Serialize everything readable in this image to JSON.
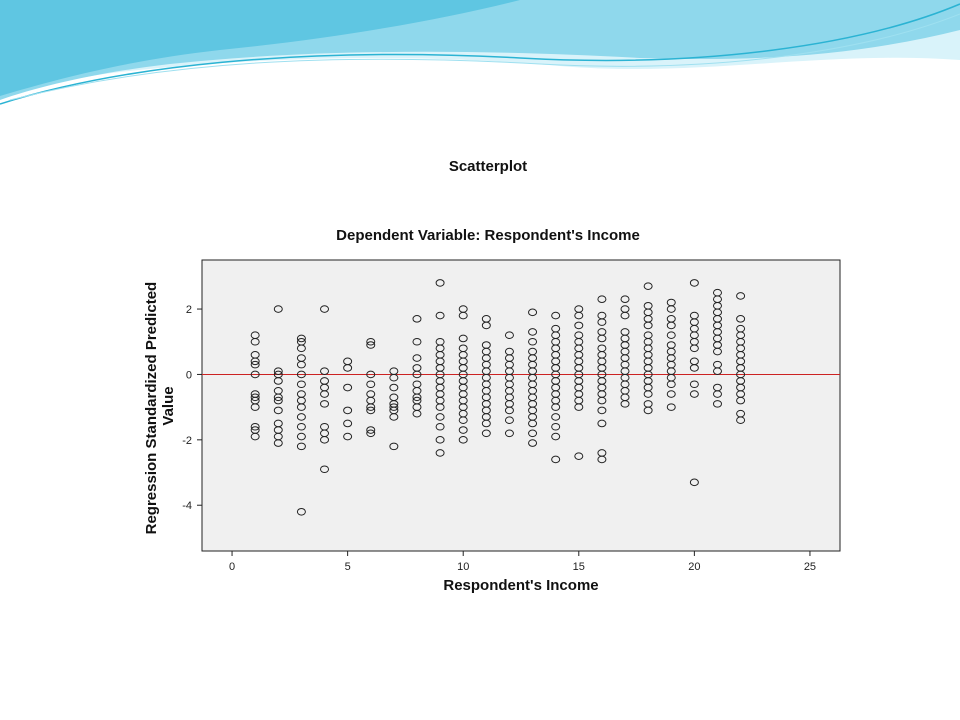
{
  "theme": {
    "wave_light": "#d9f3fa",
    "wave_mid": "#8fd8ec",
    "wave_dark": "#2bb3d3",
    "plot_background": "#f0f0f0",
    "reference_line": "#cc2222",
    "marker_stroke": "#222222"
  },
  "chart_data": {
    "type": "scatter",
    "title": "Scatterplot",
    "subtitle": "Dependent Variable: Respondent's Income",
    "xlabel": "Respondent's Income",
    "ylabel": "Regression Standardized Predicted Value",
    "xlim": [
      -1.3,
      26.3
    ],
    "ylim": [
      -5.4,
      3.5
    ],
    "x_ticks": [
      0,
      5,
      10,
      15,
      20,
      25
    ],
    "y_ticks": [
      2,
      0,
      -2,
      -4
    ],
    "grid": false,
    "reference_line_y": 0,
    "marker": "open-circle",
    "points": [
      {
        "x": 1,
        "y": 1.2
      },
      {
        "x": 1,
        "y": 1.0
      },
      {
        "x": 1,
        "y": 0.6
      },
      {
        "x": 1,
        "y": 0.4
      },
      {
        "x": 1,
        "y": 0.3
      },
      {
        "x": 1,
        "y": 0.0
      },
      {
        "x": 1,
        "y": -0.6
      },
      {
        "x": 1,
        "y": -0.7
      },
      {
        "x": 1,
        "y": -0.8
      },
      {
        "x": 1,
        "y": -1.0
      },
      {
        "x": 1,
        "y": -1.6
      },
      {
        "x": 1,
        "y": -1.7
      },
      {
        "x": 1,
        "y": -1.9
      },
      {
        "x": 2,
        "y": 2.0
      },
      {
        "x": 2,
        "y": 0.1
      },
      {
        "x": 2,
        "y": 0.0
      },
      {
        "x": 2,
        "y": -0.2
      },
      {
        "x": 2,
        "y": -0.5
      },
      {
        "x": 2,
        "y": -0.7
      },
      {
        "x": 2,
        "y": -0.8
      },
      {
        "x": 2,
        "y": -1.1
      },
      {
        "x": 2,
        "y": -1.5
      },
      {
        "x": 2,
        "y": -1.7
      },
      {
        "x": 2,
        "y": -1.9
      },
      {
        "x": 2,
        "y": -2.1
      },
      {
        "x": 3,
        "y": 1.1
      },
      {
        "x": 3,
        "y": 1.0
      },
      {
        "x": 3,
        "y": 0.8
      },
      {
        "x": 3,
        "y": 0.5
      },
      {
        "x": 3,
        "y": 0.3
      },
      {
        "x": 3,
        "y": 0.0
      },
      {
        "x": 3,
        "y": -0.3
      },
      {
        "x": 3,
        "y": -0.6
      },
      {
        "x": 3,
        "y": -0.8
      },
      {
        "x": 3,
        "y": -1.0
      },
      {
        "x": 3,
        "y": -1.3
      },
      {
        "x": 3,
        "y": -1.6
      },
      {
        "x": 3,
        "y": -1.9
      },
      {
        "x": 3,
        "y": -2.2
      },
      {
        "x": 3,
        "y": -4.2
      },
      {
        "x": 4,
        "y": 2.0
      },
      {
        "x": 4,
        "y": 0.1
      },
      {
        "x": 4,
        "y": -0.2
      },
      {
        "x": 4,
        "y": -0.4
      },
      {
        "x": 4,
        "y": -0.6
      },
      {
        "x": 4,
        "y": -0.9
      },
      {
        "x": 4,
        "y": -1.6
      },
      {
        "x": 4,
        "y": -1.8
      },
      {
        "x": 4,
        "y": -2.0
      },
      {
        "x": 4,
        "y": -2.9
      },
      {
        "x": 5,
        "y": 0.4
      },
      {
        "x": 5,
        "y": 0.2
      },
      {
        "x": 5,
        "y": -0.4
      },
      {
        "x": 5,
        "y": -1.1
      },
      {
        "x": 5,
        "y": -1.5
      },
      {
        "x": 5,
        "y": -1.9
      },
      {
        "x": 6,
        "y": 1.0
      },
      {
        "x": 6,
        "y": 0.9
      },
      {
        "x": 6,
        "y": 0.0
      },
      {
        "x": 6,
        "y": -0.3
      },
      {
        "x": 6,
        "y": -0.6
      },
      {
        "x": 6,
        "y": -0.8
      },
      {
        "x": 6,
        "y": -1.0
      },
      {
        "x": 6,
        "y": -1.1
      },
      {
        "x": 6,
        "y": -1.7
      },
      {
        "x": 6,
        "y": -1.8
      },
      {
        "x": 7,
        "y": 0.1
      },
      {
        "x": 7,
        "y": -0.1
      },
      {
        "x": 7,
        "y": -0.4
      },
      {
        "x": 7,
        "y": -0.7
      },
      {
        "x": 7,
        "y": -0.9
      },
      {
        "x": 7,
        "y": -1.0
      },
      {
        "x": 7,
        "y": -1.1
      },
      {
        "x": 7,
        "y": -1.3
      },
      {
        "x": 7,
        "y": -2.2
      },
      {
        "x": 8,
        "y": 1.7
      },
      {
        "x": 8,
        "y": 1.0
      },
      {
        "x": 8,
        "y": 0.5
      },
      {
        "x": 8,
        "y": 0.2
      },
      {
        "x": 8,
        "y": 0.0
      },
      {
        "x": 8,
        "y": -0.3
      },
      {
        "x": 8,
        "y": -0.5
      },
      {
        "x": 8,
        "y": -0.7
      },
      {
        "x": 8,
        "y": -0.8
      },
      {
        "x": 8,
        "y": -1.0
      },
      {
        "x": 8,
        "y": -1.2
      },
      {
        "x": 9,
        "y": 2.8
      },
      {
        "x": 9,
        "y": 1.8
      },
      {
        "x": 9,
        "y": 1.0
      },
      {
        "x": 9,
        "y": 0.8
      },
      {
        "x": 9,
        "y": 0.6
      },
      {
        "x": 9,
        "y": 0.4
      },
      {
        "x": 9,
        "y": 0.2
      },
      {
        "x": 9,
        "y": 0.0
      },
      {
        "x": 9,
        "y": -0.2
      },
      {
        "x": 9,
        "y": -0.4
      },
      {
        "x": 9,
        "y": -0.6
      },
      {
        "x": 9,
        "y": -0.8
      },
      {
        "x": 9,
        "y": -1.0
      },
      {
        "x": 9,
        "y": -1.3
      },
      {
        "x": 9,
        "y": -1.6
      },
      {
        "x": 9,
        "y": -2.0
      },
      {
        "x": 9,
        "y": -2.4
      },
      {
        "x": 10,
        "y": 2.0
      },
      {
        "x": 10,
        "y": 1.8
      },
      {
        "x": 10,
        "y": 1.1
      },
      {
        "x": 10,
        "y": 0.8
      },
      {
        "x": 10,
        "y": 0.6
      },
      {
        "x": 10,
        "y": 0.4
      },
      {
        "x": 10,
        "y": 0.2
      },
      {
        "x": 10,
        "y": 0.0
      },
      {
        "x": 10,
        "y": -0.2
      },
      {
        "x": 10,
        "y": -0.4
      },
      {
        "x": 10,
        "y": -0.6
      },
      {
        "x": 10,
        "y": -0.8
      },
      {
        "x": 10,
        "y": -1.0
      },
      {
        "x": 10,
        "y": -1.2
      },
      {
        "x": 10,
        "y": -1.4
      },
      {
        "x": 10,
        "y": -1.7
      },
      {
        "x": 10,
        "y": -2.0
      },
      {
        "x": 11,
        "y": 1.7
      },
      {
        "x": 11,
        "y": 1.5
      },
      {
        "x": 11,
        "y": 0.9
      },
      {
        "x": 11,
        "y": 0.7
      },
      {
        "x": 11,
        "y": 0.5
      },
      {
        "x": 11,
        "y": 0.3
      },
      {
        "x": 11,
        "y": 0.1
      },
      {
        "x": 11,
        "y": -0.1
      },
      {
        "x": 11,
        "y": -0.3
      },
      {
        "x": 11,
        "y": -0.5
      },
      {
        "x": 11,
        "y": -0.7
      },
      {
        "x": 11,
        "y": -0.9
      },
      {
        "x": 11,
        "y": -1.1
      },
      {
        "x": 11,
        "y": -1.3
      },
      {
        "x": 11,
        "y": -1.5
      },
      {
        "x": 11,
        "y": -1.8
      },
      {
        "x": 12,
        "y": 1.2
      },
      {
        "x": 12,
        "y": 0.7
      },
      {
        "x": 12,
        "y": 0.5
      },
      {
        "x": 12,
        "y": 0.3
      },
      {
        "x": 12,
        "y": 0.1
      },
      {
        "x": 12,
        "y": -0.1
      },
      {
        "x": 12,
        "y": -0.3
      },
      {
        "x": 12,
        "y": -0.5
      },
      {
        "x": 12,
        "y": -0.7
      },
      {
        "x": 12,
        "y": -0.9
      },
      {
        "x": 12,
        "y": -1.1
      },
      {
        "x": 12,
        "y": -1.4
      },
      {
        "x": 12,
        "y": -1.8
      },
      {
        "x": 13,
        "y": 1.9
      },
      {
        "x": 13,
        "y": 1.3
      },
      {
        "x": 13,
        "y": 1.0
      },
      {
        "x": 13,
        "y": 0.7
      },
      {
        "x": 13,
        "y": 0.5
      },
      {
        "x": 13,
        "y": 0.3
      },
      {
        "x": 13,
        "y": 0.1
      },
      {
        "x": 13,
        "y": -0.1
      },
      {
        "x": 13,
        "y": -0.3
      },
      {
        "x": 13,
        "y": -0.5
      },
      {
        "x": 13,
        "y": -0.7
      },
      {
        "x": 13,
        "y": -0.9
      },
      {
        "x": 13,
        "y": -1.1
      },
      {
        "x": 13,
        "y": -1.3
      },
      {
        "x": 13,
        "y": -1.5
      },
      {
        "x": 13,
        "y": -1.8
      },
      {
        "x": 13,
        "y": -2.1
      },
      {
        "x": 14,
        "y": 1.8
      },
      {
        "x": 14,
        "y": 1.4
      },
      {
        "x": 14,
        "y": 1.2
      },
      {
        "x": 14,
        "y": 1.0
      },
      {
        "x": 14,
        "y": 0.8
      },
      {
        "x": 14,
        "y": 0.6
      },
      {
        "x": 14,
        "y": 0.4
      },
      {
        "x": 14,
        "y": 0.2
      },
      {
        "x": 14,
        "y": 0.0
      },
      {
        "x": 14,
        "y": -0.2
      },
      {
        "x": 14,
        "y": -0.4
      },
      {
        "x": 14,
        "y": -0.6
      },
      {
        "x": 14,
        "y": -0.8
      },
      {
        "x": 14,
        "y": -1.0
      },
      {
        "x": 14,
        "y": -1.3
      },
      {
        "x": 14,
        "y": -1.6
      },
      {
        "x": 14,
        "y": -1.9
      },
      {
        "x": 14,
        "y": -2.6
      },
      {
        "x": 15,
        "y": 2.0
      },
      {
        "x": 15,
        "y": 1.8
      },
      {
        "x": 15,
        "y": 1.5
      },
      {
        "x": 15,
        "y": 1.2
      },
      {
        "x": 15,
        "y": 1.0
      },
      {
        "x": 15,
        "y": 0.8
      },
      {
        "x": 15,
        "y": 0.6
      },
      {
        "x": 15,
        "y": 0.4
      },
      {
        "x": 15,
        "y": 0.2
      },
      {
        "x": 15,
        "y": 0.0
      },
      {
        "x": 15,
        "y": -0.2
      },
      {
        "x": 15,
        "y": -0.4
      },
      {
        "x": 15,
        "y": -0.6
      },
      {
        "x": 15,
        "y": -0.8
      },
      {
        "x": 15,
        "y": -1.0
      },
      {
        "x": 15,
        "y": -2.5
      },
      {
        "x": 16,
        "y": 2.3
      },
      {
        "x": 16,
        "y": 1.8
      },
      {
        "x": 16,
        "y": 1.6
      },
      {
        "x": 16,
        "y": 1.3
      },
      {
        "x": 16,
        "y": 1.1
      },
      {
        "x": 16,
        "y": 0.8
      },
      {
        "x": 16,
        "y": 0.6
      },
      {
        "x": 16,
        "y": 0.4
      },
      {
        "x": 16,
        "y": 0.2
      },
      {
        "x": 16,
        "y": 0.0
      },
      {
        "x": 16,
        "y": -0.2
      },
      {
        "x": 16,
        "y": -0.4
      },
      {
        "x": 16,
        "y": -0.6
      },
      {
        "x": 16,
        "y": -0.8
      },
      {
        "x": 16,
        "y": -1.1
      },
      {
        "x": 16,
        "y": -1.5
      },
      {
        "x": 16,
        "y": -2.4
      },
      {
        "x": 16,
        "y": -2.6
      },
      {
        "x": 17,
        "y": 2.3
      },
      {
        "x": 17,
        "y": 2.0
      },
      {
        "x": 17,
        "y": 1.8
      },
      {
        "x": 17,
        "y": 1.3
      },
      {
        "x": 17,
        "y": 1.1
      },
      {
        "x": 17,
        "y": 0.9
      },
      {
        "x": 17,
        "y": 0.7
      },
      {
        "x": 17,
        "y": 0.5
      },
      {
        "x": 17,
        "y": 0.3
      },
      {
        "x": 17,
        "y": 0.1
      },
      {
        "x": 17,
        "y": -0.1
      },
      {
        "x": 17,
        "y": -0.3
      },
      {
        "x": 17,
        "y": -0.5
      },
      {
        "x": 17,
        "y": -0.7
      },
      {
        "x": 17,
        "y": -0.9
      },
      {
        "x": 18,
        "y": 2.7
      },
      {
        "x": 18,
        "y": 2.1
      },
      {
        "x": 18,
        "y": 1.9
      },
      {
        "x": 18,
        "y": 1.7
      },
      {
        "x": 18,
        "y": 1.5
      },
      {
        "x": 18,
        "y": 1.2
      },
      {
        "x": 18,
        "y": 1.0
      },
      {
        "x": 18,
        "y": 0.8
      },
      {
        "x": 18,
        "y": 0.6
      },
      {
        "x": 18,
        "y": 0.4
      },
      {
        "x": 18,
        "y": 0.2
      },
      {
        "x": 18,
        "y": 0.0
      },
      {
        "x": 18,
        "y": -0.2
      },
      {
        "x": 18,
        "y": -0.4
      },
      {
        "x": 18,
        "y": -0.6
      },
      {
        "x": 18,
        "y": -0.9
      },
      {
        "x": 18,
        "y": -1.1
      },
      {
        "x": 19,
        "y": 2.2
      },
      {
        "x": 19,
        "y": 2.0
      },
      {
        "x": 19,
        "y": 1.7
      },
      {
        "x": 19,
        "y": 1.5
      },
      {
        "x": 19,
        "y": 1.2
      },
      {
        "x": 19,
        "y": 0.9
      },
      {
        "x": 19,
        "y": 0.7
      },
      {
        "x": 19,
        "y": 0.5
      },
      {
        "x": 19,
        "y": 0.3
      },
      {
        "x": 19,
        "y": 0.1
      },
      {
        "x": 19,
        "y": -0.1
      },
      {
        "x": 19,
        "y": -0.3
      },
      {
        "x": 19,
        "y": -0.6
      },
      {
        "x": 19,
        "y": -1.0
      },
      {
        "x": 20,
        "y": 2.8
      },
      {
        "x": 20,
        "y": 1.8
      },
      {
        "x": 20,
        "y": 1.6
      },
      {
        "x": 20,
        "y": 1.4
      },
      {
        "x": 20,
        "y": 1.2
      },
      {
        "x": 20,
        "y": 1.0
      },
      {
        "x": 20,
        "y": 0.8
      },
      {
        "x": 20,
        "y": 0.4
      },
      {
        "x": 20,
        "y": 0.2
      },
      {
        "x": 20,
        "y": -0.3
      },
      {
        "x": 20,
        "y": -0.6
      },
      {
        "x": 20,
        "y": -3.3
      },
      {
        "x": 21,
        "y": 2.5
      },
      {
        "x": 21,
        "y": 2.3
      },
      {
        "x": 21,
        "y": 2.1
      },
      {
        "x": 21,
        "y": 1.9
      },
      {
        "x": 21,
        "y": 1.7
      },
      {
        "x": 21,
        "y": 1.5
      },
      {
        "x": 21,
        "y": 1.3
      },
      {
        "x": 21,
        "y": 1.1
      },
      {
        "x": 21,
        "y": 0.9
      },
      {
        "x": 21,
        "y": 0.7
      },
      {
        "x": 21,
        "y": 0.3
      },
      {
        "x": 21,
        "y": 0.1
      },
      {
        "x": 21,
        "y": -0.4
      },
      {
        "x": 21,
        "y": -0.6
      },
      {
        "x": 21,
        "y": -0.9
      },
      {
        "x": 22,
        "y": 2.4
      },
      {
        "x": 22,
        "y": 1.7
      },
      {
        "x": 22,
        "y": 1.4
      },
      {
        "x": 22,
        "y": 1.2
      },
      {
        "x": 22,
        "y": 1.0
      },
      {
        "x": 22,
        "y": 0.8
      },
      {
        "x": 22,
        "y": 0.6
      },
      {
        "x": 22,
        "y": 0.4
      },
      {
        "x": 22,
        "y": 0.2
      },
      {
        "x": 22,
        "y": 0.0
      },
      {
        "x": 22,
        "y": -0.2
      },
      {
        "x": 22,
        "y": -0.4
      },
      {
        "x": 22,
        "y": -0.6
      },
      {
        "x": 22,
        "y": -0.8
      },
      {
        "x": 22,
        "y": -1.2
      },
      {
        "x": 22,
        "y": -1.4
      }
    ]
  }
}
